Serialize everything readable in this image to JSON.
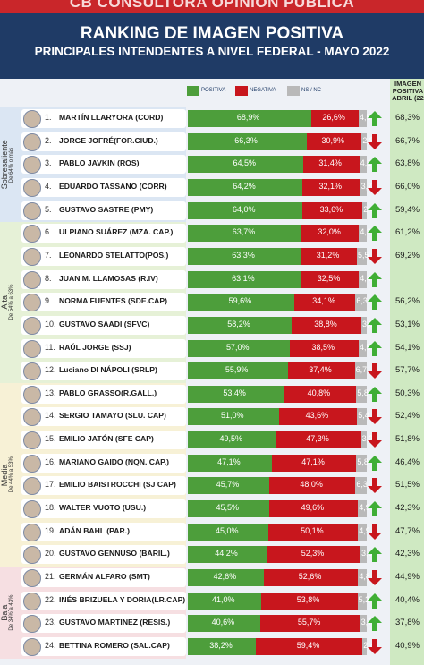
{
  "topbar_text": "CB CONSULTORA OPINION PUBLICA",
  "chart_data": {
    "type": "bar",
    "title": "RANKING DE IMAGEN POSITIVA",
    "subtitle": "PRINCIPALES INTENDENTES A NIVEL FEDERAL - MAYO 2022",
    "legend": [
      {
        "name": "POSITIVA",
        "color": "#4d9e3b"
      },
      {
        "name": "NEGATIVA",
        "color": "#c8161d"
      },
      {
        "name": "NS / NC",
        "color": "#b9b9b9"
      }
    ],
    "image_column_header": [
      "IMAGEN",
      "POSITIVA",
      "ABRIL (22"
    ],
    "bands": [
      {
        "label": "Sobresaliente",
        "range": "De 64% o más",
        "from": 1,
        "to": 5,
        "color": "#dbe6f3"
      },
      {
        "label": "Alta",
        "range": "De 54% a 63%",
        "from": 6,
        "to": 12,
        "color": "#e6f1d7"
      },
      {
        "label": "Media",
        "range": "De 44% a 53%",
        "from": 13,
        "to": 20,
        "color": "#f7f1d6"
      },
      {
        "label": "Baja",
        "range": "De 34% a 43%",
        "from": 21,
        "to": 24,
        "color": "#f6dfe2"
      }
    ],
    "rows": [
      {
        "rank": "1.",
        "name": "MARTÍN LLARYORA (CORD)",
        "pos": 68.9,
        "neg": 26.6,
        "ns": 4.5,
        "pos_label": "68,9%",
        "neg_label": "26,6%",
        "ns_label": "4,5",
        "trend": "up",
        "prev_label": "68,3%"
      },
      {
        "rank": "2.",
        "name": "JORGE JOFRÉ(FOR.CIUD.)",
        "pos": 66.3,
        "neg": 30.9,
        "ns": 2.8,
        "pos_label": "66,3%",
        "neg_label": "30,9%",
        "ns_label": "2,8",
        "trend": "down",
        "prev_label": "66,7%"
      },
      {
        "rank": "3.",
        "name": "PABLO JAVKIN (ROS)",
        "pos": 64.5,
        "neg": 31.4,
        "ns": 4.1,
        "pos_label": "64,5%",
        "neg_label": "31,4%",
        "ns_label": "4,1",
        "trend": "up",
        "prev_label": "63,8%"
      },
      {
        "rank": "4.",
        "name": "EDUARDO TASSANO (CORR)",
        "pos": 64.2,
        "neg": 32.1,
        "ns": 3.7,
        "pos_label": "64,2%",
        "neg_label": "32,1%",
        "ns_label": "3,7",
        "trend": "down",
        "prev_label": "66,0%"
      },
      {
        "rank": "5.",
        "name": "GUSTAVO SASTRE (PMY)",
        "pos": 64.0,
        "neg": 33.6,
        "ns": 2.4,
        "pos_label": "64,0%",
        "neg_label": "33,6%",
        "ns_label": "2,4",
        "trend": "up",
        "prev_label": "59,4%"
      },
      {
        "rank": "6.",
        "name": "ULPIANO SUÁREZ (MZA. CAP.)",
        "pos": 63.7,
        "neg": 32.0,
        "ns": 4.3,
        "pos_label": "63,7%",
        "neg_label": "32,0%",
        "ns_label": "4,3",
        "trend": "up",
        "prev_label": "61,2%"
      },
      {
        "rank": "7.",
        "name": "LEONARDO STELATTO(POS.)",
        "pos": 63.3,
        "neg": 31.2,
        "ns": 5.5,
        "pos_label": "63,3%",
        "neg_label": "31,2%",
        "ns_label": "5,5",
        "trend": "down",
        "prev_label": "69,2%"
      },
      {
        "rank": "8.",
        "name": "JUAN M. LLAMOSAS (R.IV)",
        "pos": 63.1,
        "neg": 32.5,
        "ns": 4.4,
        "pos_label": "63,1%",
        "neg_label": "32,5%",
        "ns_label": "4,4",
        "trend": "up",
        "prev_label": ""
      },
      {
        "rank": "9.",
        "name": "NORMA FUENTES (SDE.CAP)",
        "pos": 59.6,
        "neg": 34.1,
        "ns": 6.3,
        "pos_label": "59,6%",
        "neg_label": "34,1%",
        "ns_label": "6,3",
        "trend": "up",
        "prev_label": "56,2%"
      },
      {
        "rank": "10.",
        "name": "GUSTAVO SAADI (SFVC)",
        "pos": 58.2,
        "neg": 38.8,
        "ns": 3.0,
        "pos_label": "58,2%",
        "neg_label": "38,8%",
        "ns_label": "3,0",
        "trend": "up",
        "prev_label": "53,1%"
      },
      {
        "rank": "11.",
        "name": "RAÚL JORGE (SSJ)",
        "pos": 57.0,
        "neg": 38.5,
        "ns": 4.5,
        "pos_label": "57,0%",
        "neg_label": "38,5%",
        "ns_label": "4,5",
        "trend": "up",
        "prev_label": "54,1%"
      },
      {
        "rank": "12.",
        "name": "Luciano DI NÁPOLI (SRLP)",
        "pos": 55.9,
        "neg": 37.4,
        "ns": 6.7,
        "pos_label": "55,9%",
        "neg_label": "37,4%",
        "ns_label": "6,7",
        "trend": "down",
        "prev_label": "57,7%"
      },
      {
        "rank": "13.",
        "name": "PABLO GRASSO(R.GALL.)",
        "pos": 53.4,
        "neg": 40.8,
        "ns": 5.8,
        "pos_label": "53,4%",
        "neg_label": "40,8%",
        "ns_label": "5,8",
        "trend": "up",
        "prev_label": "50,3%"
      },
      {
        "rank": "14.",
        "name": "SERGIO TAMAYO (SLU. CAP)",
        "pos": 51.0,
        "neg": 43.6,
        "ns": 5.4,
        "pos_label": "51,0%",
        "neg_label": "43,6%",
        "ns_label": "5,4",
        "trend": "down",
        "prev_label": "52,4%"
      },
      {
        "rank": "15.",
        "name": "EMILIO JATÓN (SFE CAP)",
        "pos": 49.5,
        "neg": 47.3,
        "ns": 3.2,
        "pos_label": "49,5%",
        "neg_label": "47,3%",
        "ns_label": "3,2",
        "trend": "down",
        "prev_label": "51,8%"
      },
      {
        "rank": "16.",
        "name": "MARIANO GAIDO (NQN. CAP.)",
        "pos": 47.1,
        "neg": 47.1,
        "ns": 5.8,
        "pos_label": "47,1%",
        "neg_label": "47,1%",
        "ns_label": "5,8",
        "trend": "up",
        "prev_label": "46,4%"
      },
      {
        "rank": "17.",
        "name": "EMILIO BAISTROCCHI (SJ CAP)",
        "pos": 45.7,
        "neg": 48.0,
        "ns": 6.3,
        "pos_label": "45,7%",
        "neg_label": "48,0%",
        "ns_label": "6,3",
        "trend": "down",
        "prev_label": "51,5%"
      },
      {
        "rank": "18.",
        "name": "WALTER VUOTO (USU.)",
        "pos": 45.5,
        "neg": 49.6,
        "ns": 4.9,
        "pos_label": "45,5%",
        "neg_label": "49,6%",
        "ns_label": "4,9",
        "trend": "up",
        "prev_label": "42,3%"
      },
      {
        "rank": "19.",
        "name": "ADÁN BAHL (PAR.)",
        "pos": 45.0,
        "neg": 50.1,
        "ns": 4.9,
        "pos_label": "45,0%",
        "neg_label": "50,1%",
        "ns_label": "4,9",
        "trend": "down",
        "prev_label": "47,7%"
      },
      {
        "rank": "20.",
        "name": "GUSTAVO GENNUSO (BARIL.)",
        "pos": 44.2,
        "neg": 52.3,
        "ns": 3.5,
        "pos_label": "44,2%",
        "neg_label": "52,3%",
        "ns_label": "3,5",
        "trend": "up",
        "prev_label": "42,3%"
      },
      {
        "rank": "21.",
        "name": "GERMÁN ALFARO (SMT)",
        "pos": 42.6,
        "neg": 52.6,
        "ns": 4.8,
        "pos_label": "42,6%",
        "neg_label": "52,6%",
        "ns_label": "4,8",
        "trend": "down",
        "prev_label": "44,9%"
      },
      {
        "rank": "22.",
        "name": "INÉS BRIZUELA Y DORIA(LR.CAP)",
        "pos": 41.0,
        "neg": 53.8,
        "ns": 5.2,
        "pos_label": "41,0%",
        "neg_label": "53,8%",
        "ns_label": "5,2",
        "trend": "up",
        "prev_label": "40,4%"
      },
      {
        "rank": "23.",
        "name": "GUSTAVO MARTINEZ (RESIS.)",
        "pos": 40.6,
        "neg": 55.7,
        "ns": 3.7,
        "pos_label": "40,6%",
        "neg_label": "55,7%",
        "ns_label": "3,7",
        "trend": "up",
        "prev_label": "37,8%"
      },
      {
        "rank": "24.",
        "name": "BETTINA ROMERO (SAL.CAP)",
        "pos": 38.2,
        "neg": 59.4,
        "ns": 2.4,
        "pos_label": "38,2%",
        "neg_label": "59,4%",
        "ns_label": "2,4",
        "trend": "down",
        "prev_label": "40,9%"
      }
    ]
  }
}
